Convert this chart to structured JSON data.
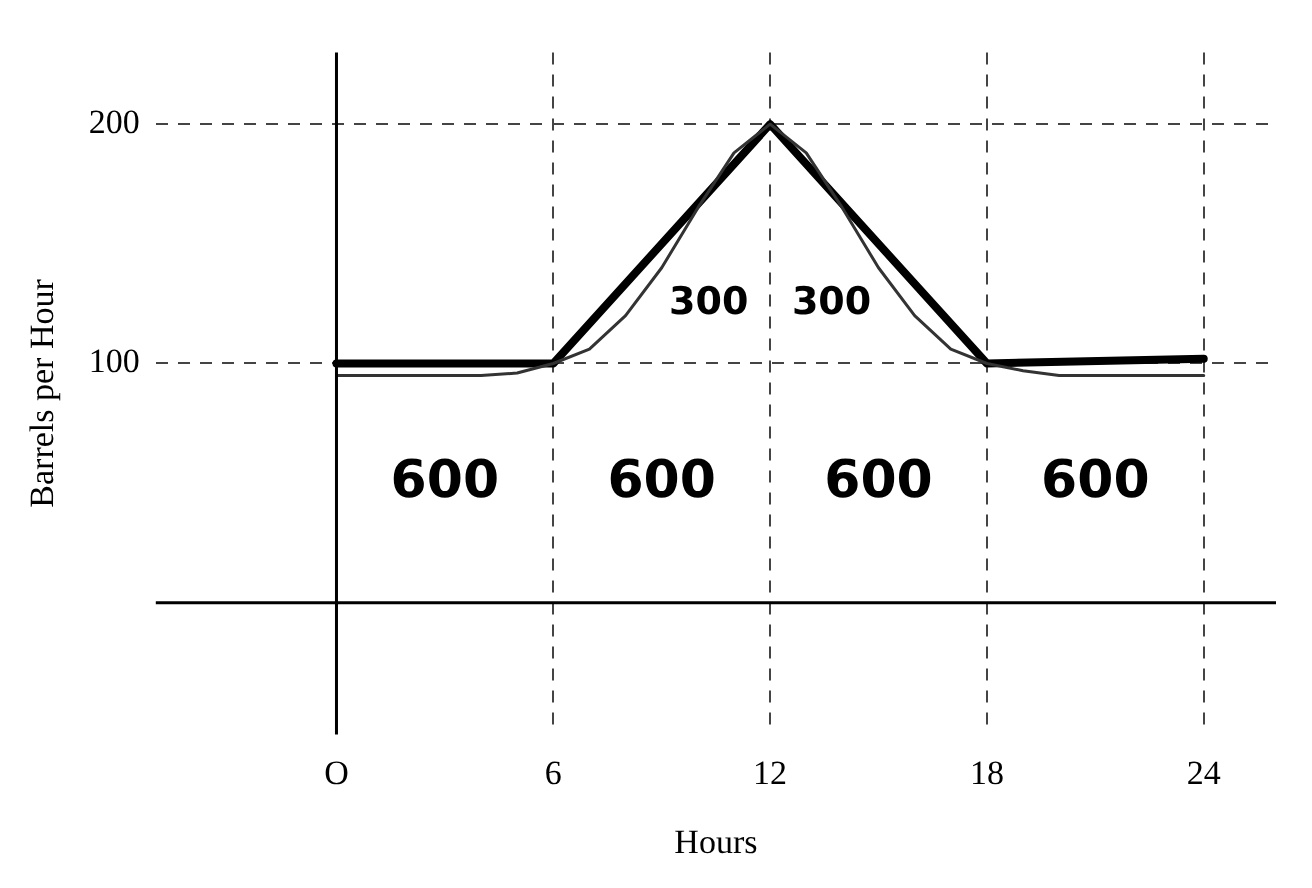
{
  "chart_data": {
    "type": "line",
    "xlabel": "Hours",
    "ylabel": "Barrels per Hour",
    "xlim": [
      -5,
      26
    ],
    "ylim": [
      -55,
      230
    ],
    "xticks": [
      {
        "value": 0,
        "label": "O"
      },
      6,
      12,
      18,
      24
    ],
    "yticks": [
      100,
      200
    ],
    "grid": true,
    "marker": "none",
    "series": [
      {
        "color": "#333333",
        "x": [
          0,
          2,
          4,
          5,
          6,
          7,
          8,
          9,
          10,
          11,
          12,
          13,
          14,
          15,
          16,
          17,
          18,
          19,
          20,
          22,
          24
        ],
        "values": [
          95,
          95,
          95,
          96,
          100,
          106,
          120,
          140,
          165,
          188,
          200,
          188,
          165,
          140,
          120,
          106,
          100,
          97,
          95,
          95,
          95
        ]
      },
      {
        "color": "#000000",
        "x": [
          0,
          6,
          12,
          18,
          24
        ],
        "values": [
          100,
          100,
          200,
          100,
          102
        ]
      }
    ],
    "annotations": [
      "600",
      "600",
      "600",
      "600",
      "300",
      "300"
    ]
  }
}
